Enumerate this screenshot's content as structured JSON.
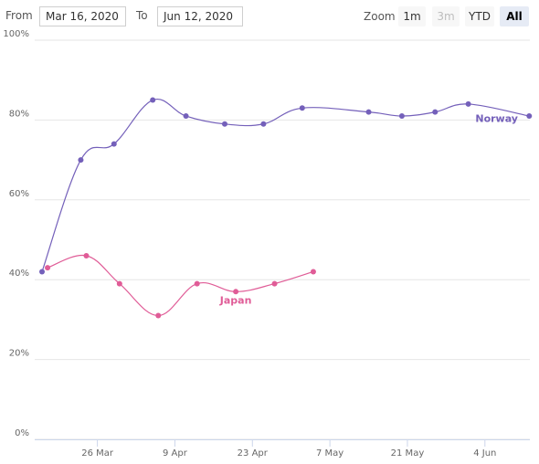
{
  "range_selector": {
    "from_label": "From",
    "from_value": "Mar 16, 2020",
    "to_label": "To",
    "to_value": "Jun 12, 2020",
    "zoom_label": "Zoom",
    "buttons": [
      {
        "label": "1m",
        "state": "normal"
      },
      {
        "label": "3m",
        "state": "disabled"
      },
      {
        "label": "YTD",
        "state": "normal"
      },
      {
        "label": "All",
        "state": "selected"
      }
    ]
  },
  "chart_data": {
    "type": "line",
    "x_axis": {
      "ticks": [
        "26 Mar",
        "9 Apr",
        "23 Apr",
        "7 May",
        "21 May",
        "4 Jun"
      ],
      "range": [
        "2020-03-16",
        "2020-06-12"
      ]
    },
    "y_axis": {
      "ticks": [
        "0%",
        "20%",
        "40%",
        "60%",
        "80%",
        "100%"
      ],
      "range": [
        0,
        100
      ]
    },
    "grid": true,
    "series": [
      {
        "name": "Norway",
        "color": "#7460ba",
        "points": [
          [
            "2020-03-16",
            42
          ],
          [
            "2020-03-23",
            70
          ],
          [
            "2020-03-29",
            74
          ],
          [
            "2020-04-05",
            85
          ],
          [
            "2020-04-11",
            81
          ],
          [
            "2020-04-18",
            79
          ],
          [
            "2020-04-25",
            79
          ],
          [
            "2020-05-02",
            83
          ],
          [
            "2020-05-14",
            82
          ],
          [
            "2020-05-20",
            81
          ],
          [
            "2020-05-26",
            82
          ],
          [
            "2020-06-01",
            84
          ],
          [
            "2020-06-12",
            81
          ]
        ]
      },
      {
        "name": "Japan",
        "color": "#e05c97",
        "points": [
          [
            "2020-03-17",
            43
          ],
          [
            "2020-03-24",
            46
          ],
          [
            "2020-03-30",
            39
          ],
          [
            "2020-04-06",
            31
          ],
          [
            "2020-04-13",
            39
          ],
          [
            "2020-04-20",
            37
          ],
          [
            "2020-04-27",
            39
          ],
          [
            "2020-05-04",
            42
          ]
        ]
      }
    ]
  }
}
